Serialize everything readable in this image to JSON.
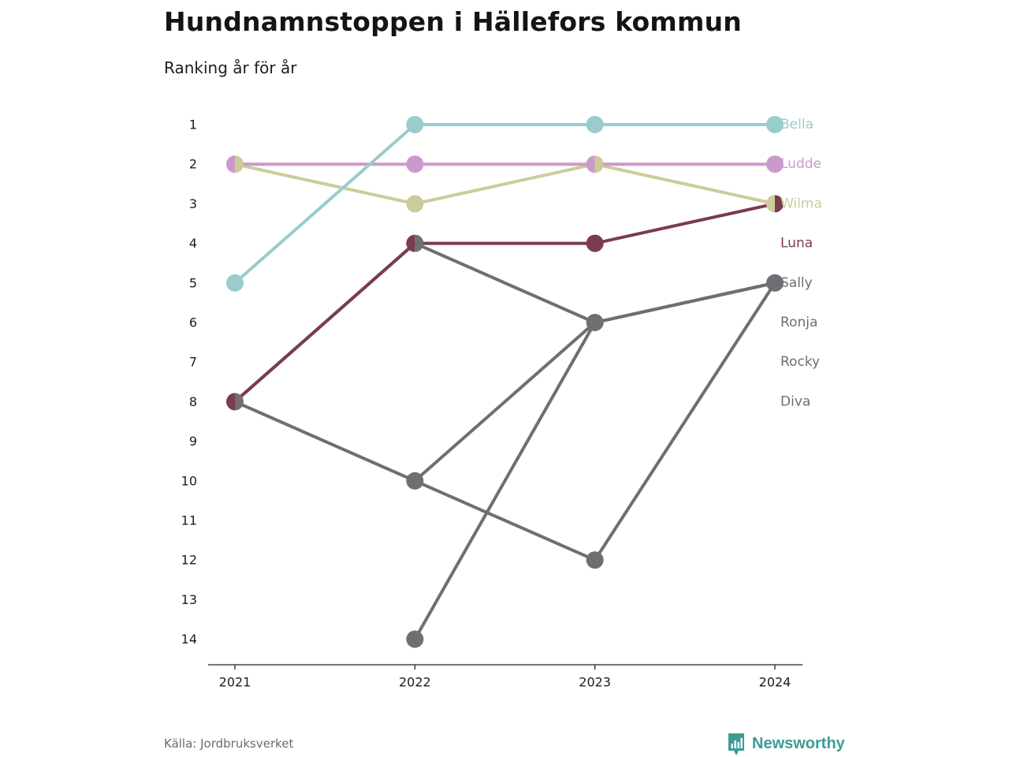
{
  "title": "Hundnamnstoppen i Hällefors kommun",
  "subtitle": "Ranking år för år",
  "source": "Källa: Jordbruksverket",
  "brand": {
    "name": "Newsworthy",
    "icon": "bar-chart-logo-icon",
    "color": "#3d9b95"
  },
  "chart_data": {
    "type": "line",
    "x": [
      "2021",
      "2022",
      "2023",
      "2024"
    ],
    "y_ticks": [
      "1",
      "2",
      "3",
      "4",
      "5",
      "6",
      "7",
      "8",
      "9",
      "10",
      "11",
      "12",
      "13",
      "14"
    ],
    "ylim": [
      1,
      14
    ],
    "y_reversed": true,
    "grid": false,
    "legend": "end-labels",
    "series": [
      {
        "name": "Rocky",
        "values": [
          null,
          14,
          6,
          5
        ],
        "color": "#6e6e73"
      },
      {
        "name": "Ronja",
        "values": [
          8,
          10,
          12,
          5
        ],
        "color": "#6e6e73"
      },
      {
        "name": "Diva",
        "values": [
          8,
          4,
          6,
          5
        ],
        "color": "#6e6e73"
      },
      {
        "name": "Sally",
        "values": [
          null,
          10,
          6,
          5
        ],
        "color": "#6e6e73"
      },
      {
        "name": "Luna",
        "values": [
          8,
          4,
          4,
          3
        ],
        "color": "#7b3b50"
      },
      {
        "name": "Wilma",
        "values": [
          2,
          3,
          2,
          3
        ],
        "color": "#cccc99"
      },
      {
        "name": "Ludde",
        "values": [
          2,
          2,
          2,
          2
        ],
        "color": "#cc99cc"
      },
      {
        "name": "Bella",
        "values": [
          5,
          1,
          1,
          1
        ],
        "color": "#99cccc"
      }
    ],
    "end_labels": [
      {
        "name": "Bella",
        "rank": 1,
        "color": "#99cccc"
      },
      {
        "name": "Ludde",
        "rank": 2,
        "color": "#cc99cc"
      },
      {
        "name": "Wilma",
        "rank": 3,
        "color": "#cccc99"
      },
      {
        "name": "Luna",
        "rank": 4,
        "color": "#7b3b50"
      },
      {
        "name": "Sally",
        "rank": 5,
        "color": "#6e6e73"
      },
      {
        "name": "Ronja",
        "rank": 6,
        "color": "#6e6e73"
      },
      {
        "name": "Rocky",
        "rank": 7,
        "color": "#6e6e73"
      },
      {
        "name": "Diva",
        "rank": 8,
        "color": "#6e6e73"
      }
    ]
  }
}
